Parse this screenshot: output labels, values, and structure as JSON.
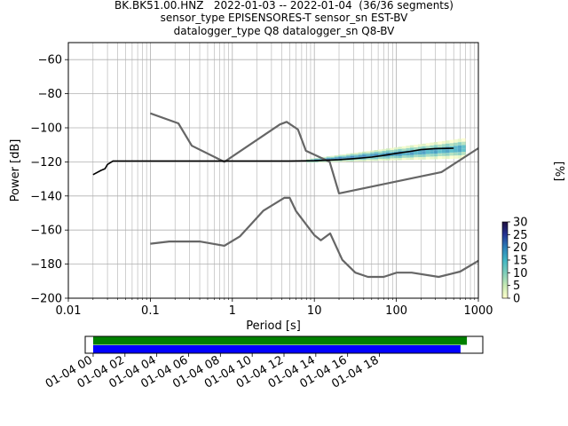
{
  "header": {
    "title_line1": "BK.BK51.00.HNZ   2022-01-03 -- 2022-01-04  (36/36 segments)",
    "title_line2": "sensor_type EPISENSORES-T sensor_sn EST-BV",
    "title_line3": "datalogger_type Q8 datalogger_sn Q8-BV"
  },
  "chart_data": [
    {
      "type": "heatmap",
      "xlabel": "Period [s]",
      "ylabel": "Power [dB]",
      "xscale": "log",
      "xlim": [
        0.01,
        1000
      ],
      "ylim": [
        -200,
        -50
      ],
      "xticks": [
        {
          "v": 0.01,
          "label": "0.01"
        },
        {
          "v": 0.1,
          "label": "0.1"
        },
        {
          "v": 1,
          "label": "1"
        },
        {
          "v": 10,
          "label": "10"
        },
        {
          "v": 100,
          "label": "100"
        },
        {
          "v": 1000,
          "label": "1000"
        }
      ],
      "yticks": [
        -200,
        -180,
        -160,
        -140,
        -120,
        -100,
        -80,
        -60
      ],
      "grid": true,
      "noise_models": [
        {
          "name": "NHNM",
          "points": [
            [
              0.1,
              -91.5
            ],
            [
              0.22,
              -97.4
            ],
            [
              0.32,
              -110.5
            ],
            [
              0.8,
              -120
            ],
            [
              3.8,
              -98
            ],
            [
              4.6,
              -96.5
            ],
            [
              6.3,
              -101
            ],
            [
              7.9,
              -113.5
            ],
            [
              15.4,
              -120
            ],
            [
              20,
              -138.5
            ],
            [
              354.8,
              -126
            ],
            [
              1000,
              -112
            ]
          ]
        },
        {
          "name": "NLNM",
          "points": [
            [
              0.1,
              -168
            ],
            [
              0.17,
              -166.7
            ],
            [
              0.4,
              -166.7
            ],
            [
              0.8,
              -169.2
            ],
            [
              1.24,
              -163.7
            ],
            [
              2.4,
              -148.6
            ],
            [
              4.3,
              -141.1
            ],
            [
              5,
              -141.1
            ],
            [
              6,
              -149
            ],
            [
              10,
              -163
            ],
            [
              12,
              -166
            ],
            [
              15.6,
              -162
            ],
            [
              21.9,
              -177.5
            ],
            [
              31.6,
              -185
            ],
            [
              45,
              -187.5
            ],
            [
              70,
              -187.5
            ],
            [
              101,
              -185
            ],
            [
              154,
              -185
            ],
            [
              328,
              -187.5
            ],
            [
              600,
              -184.4
            ],
            [
              1000,
              -178
            ]
          ]
        }
      ],
      "median_curve": [
        [
          0.02,
          -127.5
        ],
        [
          0.025,
          -125
        ],
        [
          0.028,
          -124
        ],
        [
          0.03,
          -121.5
        ],
        [
          0.035,
          -119.5
        ],
        [
          0.5,
          -119.5
        ],
        [
          1,
          -119.5
        ],
        [
          5,
          -119.5
        ],
        [
          10,
          -119.3
        ],
        [
          20,
          -118.7
        ],
        [
          30,
          -118.1
        ],
        [
          50,
          -117.2
        ],
        [
          70,
          -116.2
        ],
        [
          100,
          -115
        ],
        [
          150,
          -113.8
        ],
        [
          200,
          -112.8
        ],
        [
          300,
          -112.2
        ],
        [
          500,
          -112
        ]
      ],
      "density_band": {
        "x_range": [
          8,
          700
        ],
        "y_start": -119.5,
        "y_end": -112,
        "spread_start": 1,
        "spread_end": 6
      },
      "colorbar": {
        "label": "[%]",
        "range": [
          0,
          30
        ],
        "ticks": [
          0,
          5,
          10,
          15,
          20,
          25,
          30
        ],
        "colormap": [
          "#ffffcc",
          "#c7e9b4",
          "#7fcdbb",
          "#41b6c4",
          "#2c7fb8",
          "#253494",
          "#1f0f3d"
        ]
      },
      "colors": {
        "noise_model": "#666666",
        "median": "#000000"
      }
    },
    {
      "type": "timeline",
      "xticks": [
        "01-04 00",
        "01-04 02",
        "01-04 04",
        "01-04 06",
        "01-04 08",
        "01-04 10",
        "01-04 12",
        "01-04 14",
        "01-04 16",
        "01-04 18"
      ],
      "xlim_hours": [
        -0.5,
        24.5
      ],
      "bars": [
        {
          "color": "#008000",
          "start_hour": 0,
          "end_hour": 23.5
        },
        {
          "color": "#0000ff",
          "start_hour": 0,
          "end_hour": 23.1
        }
      ]
    }
  ]
}
